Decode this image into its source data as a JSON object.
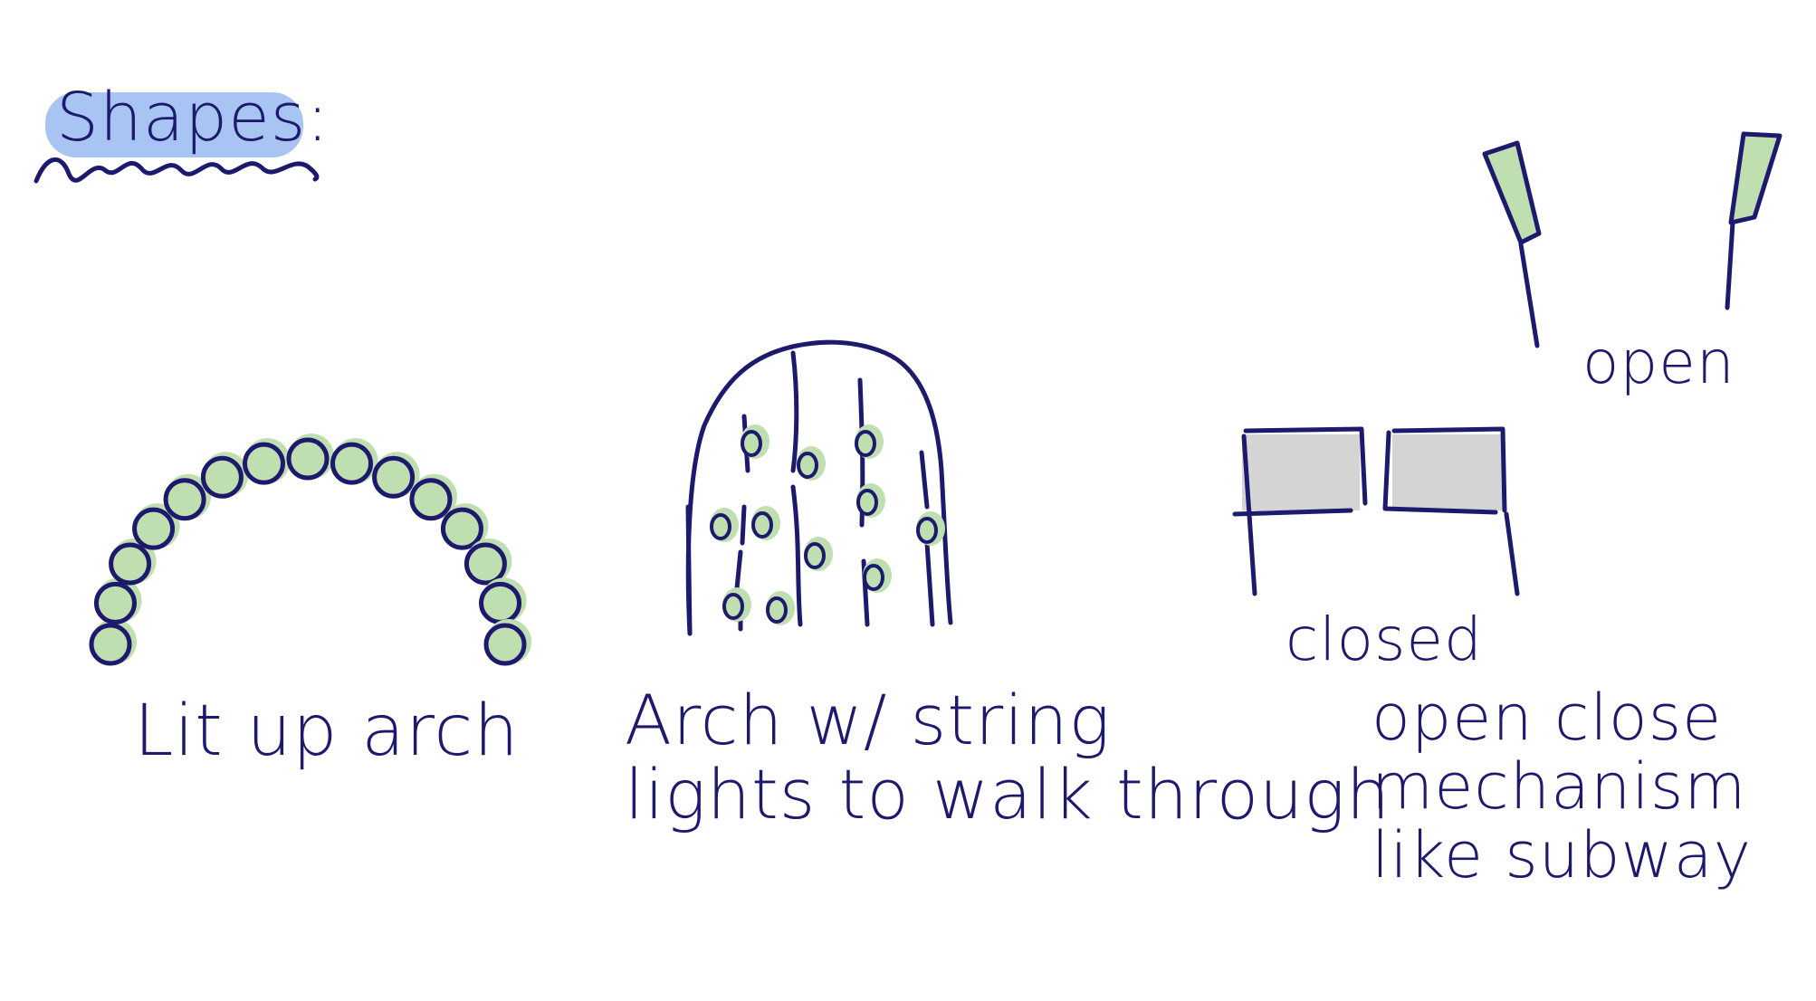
{
  "title": "Shapes:",
  "colors": {
    "ink": "#1d1a6e",
    "light_fill": "#bfdfb0",
    "highlight": "#a8c4f2",
    "gate_fill": "#d4d4d4"
  },
  "sketches": [
    {
      "name": "lit-up-arch",
      "label": "Lit up arch"
    },
    {
      "name": "string-light-arch",
      "label_lines": [
        "Arch w/ string",
        "lights to walk through"
      ]
    },
    {
      "name": "gate-mechanism",
      "state_closed": "closed",
      "state_open": "open",
      "label_lines": [
        "open close",
        "mechanism",
        "like subway"
      ]
    }
  ]
}
